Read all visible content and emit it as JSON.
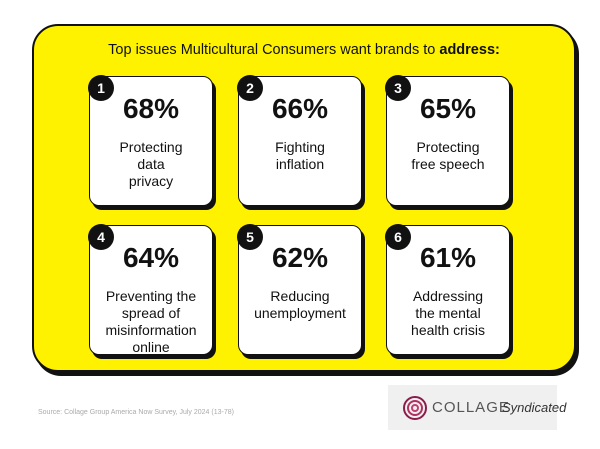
{
  "header": {
    "title": "Top issues Multicultural Consumers want brands to",
    "title_bold": "address:"
  },
  "items": [
    {
      "rank": "1",
      "percent": "68%",
      "label": [
        "Protecting",
        "data",
        "privacy"
      ]
    },
    {
      "rank": "2",
      "percent": "66%",
      "label": [
        "Fighting",
        "inflation"
      ]
    },
    {
      "rank": "3",
      "percent": "65%",
      "label": [
        "Protecting",
        "free speech"
      ]
    },
    {
      "rank": "4",
      "percent": "64%",
      "label": [
        "Preventing the",
        "spread of",
        "misinformation",
        "online"
      ]
    },
    {
      "rank": "5",
      "percent": "62%",
      "label": [
        "Reducing",
        "unemployment"
      ]
    },
    {
      "rank": "6",
      "percent": "61%",
      "label": [
        "Addressing",
        "the mental",
        "health crisis"
      ]
    }
  ],
  "footer": {
    "source": "Source: Collage Group America Now Survey, July 2024 (13-78)",
    "brand": "COLLAGE",
    "brand_tag": "Syndicated"
  }
}
